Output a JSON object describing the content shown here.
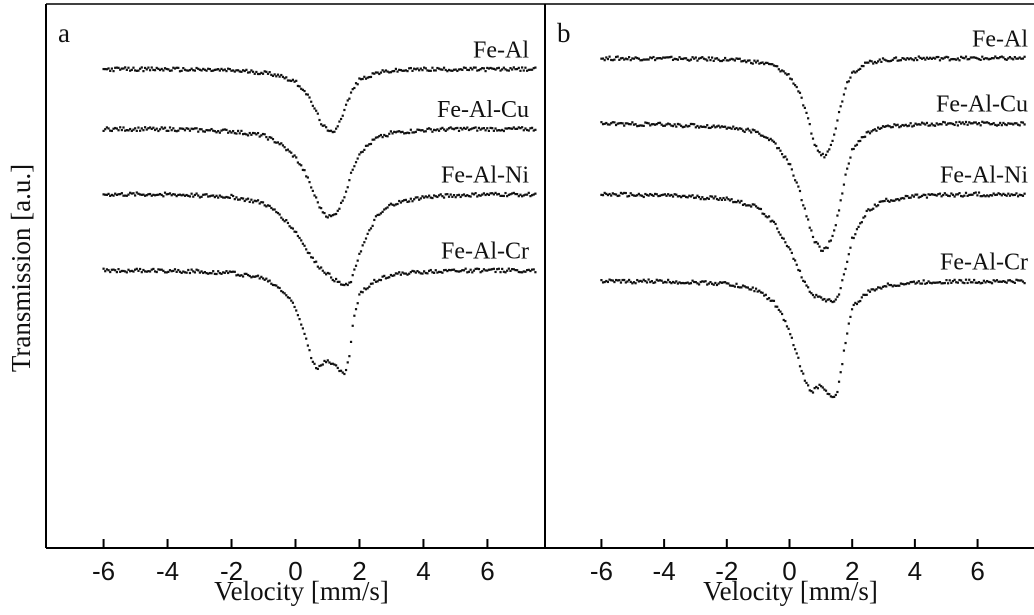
{
  "figure": {
    "ylabel": "Transmission [a.u.]"
  },
  "chart_data": [
    {
      "type": "line",
      "panel_label": "a",
      "xlabel": "Velocity [mm/s]",
      "ylabel": "Transmission [a.u.]",
      "xlim": [
        -7.8,
        7.8
      ],
      "ylim": [
        0,
        100
      ],
      "xticks": [
        -6,
        -4,
        -2,
        0,
        2,
        4,
        6
      ],
      "series": [
        {
          "name": "Fe-Al",
          "baseline": 88,
          "x": [
            -6.0,
            -4.0,
            -2.0,
            -1.0,
            -0.5,
            0.0,
            0.3,
            0.6,
            0.8,
            1.0,
            1.1,
            1.2,
            1.4,
            1.6,
            1.8,
            2.0,
            2.5,
            3.0,
            4.0,
            5.0,
            6.0,
            7.5
          ],
          "y": [
            88,
            88,
            87.8,
            87.4,
            86.9,
            85.7,
            84,
            80.8,
            78.2,
            76.7,
            76.4,
            76.6,
            78.6,
            81.6,
            84.4,
            86.0,
            87.3,
            87.7,
            88,
            88,
            88,
            88
          ]
        },
        {
          "name": "Fe-Al-Cu",
          "baseline": 77,
          "x": [
            -6.0,
            -4.0,
            -2.0,
            -1.0,
            -0.5,
            0.0,
            0.3,
            0.6,
            0.8,
            1.0,
            1.1,
            1.2,
            1.4,
            1.6,
            1.8,
            2.0,
            2.5,
            3.0,
            4.0,
            5.0,
            6.0,
            7.5
          ],
          "y": [
            77,
            77,
            76.6,
            75.8,
            74.4,
            71.8,
            69,
            64.8,
            62.2,
            61.0,
            60.9,
            61.1,
            62.8,
            65.9,
            69.9,
            72.6,
            75.2,
            76.3,
            76.8,
            77,
            77,
            77
          ]
        },
        {
          "name": "Fe-Al-Ni",
          "baseline": 65,
          "x": [
            -6.0,
            -4.0,
            -2.0,
            -1.0,
            -0.5,
            0.0,
            0.3,
            0.6,
            0.8,
            1.0,
            1.2,
            1.4,
            1.5,
            1.6,
            1.7,
            1.8,
            2.0,
            2.5,
            3.0,
            4.0,
            5.0,
            6.0,
            7.5
          ],
          "y": [
            65,
            65,
            64.6,
            63.4,
            61.4,
            58.2,
            55.4,
            52.6,
            51.4,
            50.4,
            49.4,
            48.6,
            48.3,
            48.2,
            48.6,
            50.0,
            54.2,
            60.6,
            63.2,
            64.5,
            64.8,
            65,
            65
          ]
        },
        {
          "name": "Fe-Al-Cr",
          "baseline": 51,
          "x": [
            -6.0,
            -4.0,
            -2.0,
            -1.0,
            -0.5,
            -0.2,
            0.0,
            0.3,
            0.5,
            0.7,
            0.9,
            1.0,
            1.2,
            1.4,
            1.5,
            1.6,
            1.7,
            1.8,
            2.0,
            2.5,
            3.0,
            4.0,
            5.0,
            6.0,
            7.5
          ],
          "y": [
            51,
            51,
            50.6,
            49.6,
            47.8,
            46.0,
            44.0,
            39.4,
            35.0,
            32.8,
            34.2,
            34.6,
            33.8,
            32.4,
            32.0,
            32.8,
            36.0,
            41.4,
            46.6,
            49.2,
            50.2,
            50.8,
            51,
            51,
            51
          ]
        }
      ]
    },
    {
      "type": "line",
      "panel_label": "b",
      "xlabel": "Velocity [mm/s]",
      "xlim": [
        -7.8,
        7.8
      ],
      "ylim": [
        0,
        100
      ],
      "xticks": [
        -6,
        -4,
        -2,
        0,
        2,
        4,
        6
      ],
      "series": [
        {
          "name": "Fe-Al",
          "baseline": 90,
          "x": [
            -6.0,
            -4.0,
            -2.0,
            -1.0,
            -0.5,
            0.0,
            0.3,
            0.6,
            0.8,
            1.0,
            1.1,
            1.2,
            1.4,
            1.6,
            1.8,
            2.0,
            2.5,
            3.0,
            4.0,
            5.0,
            6.0,
            7.5
          ],
          "y": [
            90,
            90,
            89.8,
            89.3,
            88.7,
            86.8,
            84,
            78.6,
            74.2,
            72.3,
            72.1,
            72.5,
            75.6,
            80.4,
            85.0,
            87.4,
            89.2,
            89.7,
            90,
            90,
            90,
            90
          ]
        },
        {
          "name": "Fe-Al-Cu",
          "baseline": 78,
          "x": [
            -6.0,
            -4.0,
            -2.0,
            -1.0,
            -0.5,
            0.0,
            0.3,
            0.6,
            0.8,
            1.0,
            1.1,
            1.2,
            1.4,
            1.6,
            1.8,
            2.0,
            2.5,
            3.0,
            4.0,
            5.0,
            6.0,
            7.5
          ],
          "y": [
            78,
            77.8,
            77.4,
            76.4,
            74.6,
            70.6,
            66,
            60,
            56.4,
            55.0,
            54.9,
            55.2,
            57.6,
            62.6,
            68.8,
            73.2,
            76.4,
            77.4,
            77.8,
            78,
            78,
            78
          ]
        },
        {
          "name": "Fe-Al-Ni",
          "baseline": 65,
          "x": [
            -6.0,
            -4.0,
            -2.0,
            -1.0,
            -0.5,
            0.0,
            0.3,
            0.6,
            0.8,
            1.0,
            1.2,
            1.3,
            1.4,
            1.5,
            1.6,
            1.8,
            2.0,
            2.5,
            3.0,
            4.0,
            5.0,
            6.0,
            7.5
          ],
          "y": [
            65,
            64.8,
            64.2,
            62.6,
            59.8,
            55.0,
            51.0,
            47.6,
            46.4,
            46.0,
            45.6,
            45.4,
            45.4,
            45.8,
            47.2,
            51.6,
            56.8,
            62.0,
            63.8,
            64.6,
            64.9,
            65,
            65
          ]
        },
        {
          "name": "Fe-Al-Cr",
          "baseline": 49,
          "x": [
            -6.0,
            -4.0,
            -2.0,
            -1.0,
            -0.5,
            -0.2,
            0.0,
            0.3,
            0.5,
            0.7,
            0.9,
            1.0,
            1.2,
            1.3,
            1.4,
            1.5,
            1.6,
            1.8,
            2.0,
            2.5,
            3.0,
            4.0,
            5.0,
            6.0,
            7.5
          ],
          "y": [
            49,
            49,
            48.6,
            47.4,
            45.2,
            42.4,
            39.6,
            34.4,
            30.6,
            28.6,
            29.6,
            30.0,
            28.8,
            27.8,
            27.4,
            28.2,
            31.0,
            38.4,
            44.2,
            47.0,
            48.2,
            48.8,
            49,
            49,
            49
          ]
        }
      ]
    }
  ]
}
